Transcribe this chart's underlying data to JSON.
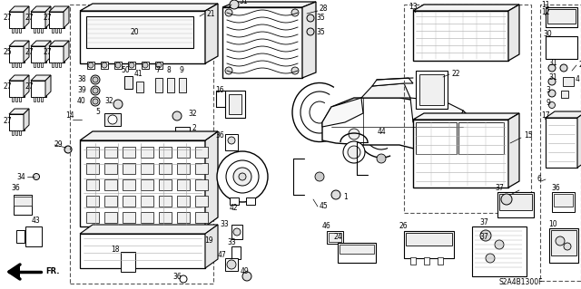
{
  "bg_color": "#ffffff",
  "line_color": "#1a1a1a",
  "diagram_code": "S2A4B1300F",
  "fig_width": 6.4,
  "fig_height": 3.19,
  "dpi": 100
}
